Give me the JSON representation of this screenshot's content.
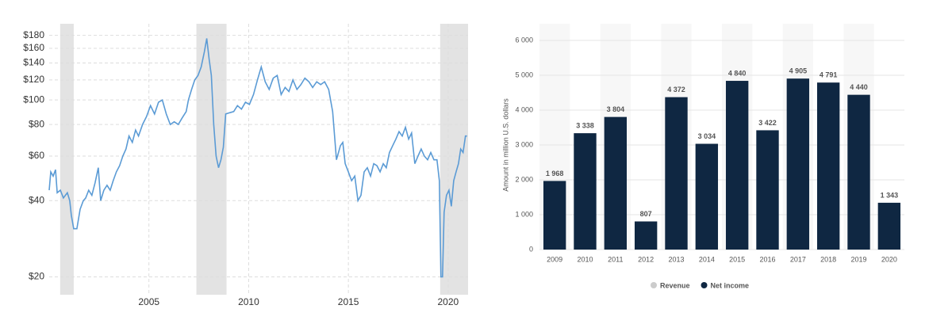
{
  "chart_data": [
    {
      "type": "line",
      "log_scale": true,
      "color": "#5b9bd5",
      "grid": true,
      "shade_color": "#e3e3e3",
      "xlim": [
        2000,
        2021
      ],
      "xticks": [
        2005,
        2010,
        2015,
        2020
      ],
      "ylim": [
        17,
        200
      ],
      "yticks": [
        {
          "value": 20,
          "label": "$20"
        },
        {
          "value": 40,
          "label": "$40"
        },
        {
          "value": 60,
          "label": "$60"
        },
        {
          "value": 80,
          "label": "$80"
        },
        {
          "value": 100,
          "label": "$100"
        },
        {
          "value": 120,
          "label": "$120"
        },
        {
          "value": 140,
          "label": "$140"
        },
        {
          "value": 160,
          "label": "$160"
        },
        {
          "value": 180,
          "label": "$180"
        }
      ],
      "shaded": [
        [
          2000.55,
          2001.23
        ],
        [
          2007.38,
          2008.89
        ],
        [
          2019.6,
          2021
        ]
      ],
      "x": [
        2000.0,
        2000.08,
        2000.2,
        2000.32,
        2000.4,
        2000.56,
        2000.71,
        2000.91,
        2001.03,
        2001.11,
        2001.23,
        2001.39,
        2001.55,
        2001.71,
        2001.83,
        2001.98,
        2002.14,
        2002.3,
        2002.46,
        2002.58,
        2002.74,
        2002.9,
        2003.06,
        2003.21,
        2003.37,
        2003.53,
        2003.69,
        2003.85,
        2004.0,
        2004.17,
        2004.33,
        2004.48,
        2004.68,
        2004.88,
        2005.08,
        2005.28,
        2005.48,
        2005.67,
        2005.87,
        2006.07,
        2006.27,
        2006.47,
        2006.67,
        2006.87,
        2006.98,
        2007.14,
        2007.3,
        2007.46,
        2007.62,
        2007.78,
        2007.9,
        2008.02,
        2008.13,
        2008.25,
        2008.37,
        2008.49,
        2008.61,
        2008.73,
        2008.85,
        2009.05,
        2009.25,
        2009.44,
        2009.64,
        2009.84,
        2010.04,
        2010.24,
        2010.44,
        2010.63,
        2010.83,
        2011.03,
        2011.23,
        2011.43,
        2011.63,
        2011.83,
        2012.02,
        2012.22,
        2012.42,
        2012.62,
        2012.82,
        2013.02,
        2013.21,
        2013.41,
        2013.61,
        2013.81,
        2014.01,
        2014.21,
        2014.4,
        2014.6,
        2014.72,
        2014.84,
        2015.0,
        2015.16,
        2015.32,
        2015.48,
        2015.63,
        2015.79,
        2015.95,
        2016.11,
        2016.27,
        2016.43,
        2016.59,
        2016.75,
        2016.9,
        2017.06,
        2017.22,
        2017.38,
        2017.54,
        2017.7,
        2017.86,
        2018.02,
        2018.17,
        2018.33,
        2018.49,
        2018.65,
        2018.81,
        2018.97,
        2019.13,
        2019.29,
        2019.44,
        2019.56,
        2019.64,
        2019.72,
        2019.8,
        2019.92,
        2020.04,
        2020.16,
        2020.28,
        2020.4,
        2020.52,
        2020.63,
        2020.75,
        2020.87,
        2020.95
      ],
      "values": [
        44,
        52,
        50,
        53,
        43,
        44,
        41,
        43,
        40,
        35,
        31,
        31,
        37,
        40,
        41,
        44,
        42,
        47,
        54,
        40,
        44,
        46,
        44,
        48,
        52,
        55,
        60,
        64,
        72,
        68,
        76,
        72,
        80,
        86,
        95,
        88,
        98,
        100,
        88,
        80,
        82,
        80,
        85,
        90,
        100,
        110,
        120,
        125,
        135,
        155,
        175,
        145,
        125,
        80,
        60,
        54,
        58,
        65,
        88,
        89,
        90,
        95,
        92,
        98,
        96,
        105,
        120,
        135,
        118,
        110,
        122,
        125,
        105,
        112,
        108,
        120,
        110,
        115,
        122,
        118,
        112,
        118,
        115,
        118,
        110,
        90,
        58,
        66,
        68,
        56,
        52,
        48,
        50,
        40,
        42,
        52,
        54,
        50,
        56,
        55,
        52,
        56,
        54,
        62,
        66,
        70,
        75,
        72,
        78,
        70,
        74,
        56,
        60,
        64,
        60,
        58,
        62,
        58,
        58,
        48,
        20,
        20,
        36,
        42,
        44,
        38,
        48,
        52,
        56,
        64,
        62,
        72,
        72
      ]
    },
    {
      "type": "bar",
      "y_label": "Amount in million U.S. dollars",
      "grid": true,
      "categories": [
        "2009",
        "2010",
        "2011",
        "2012",
        "2013",
        "2014",
        "2015",
        "2016",
        "2017",
        "2018",
        "2019",
        "2020"
      ],
      "ylim": [
        0,
        6000
      ],
      "yticks": [
        0,
        {
          "value": 1000,
          "label": "1 000"
        },
        {
          "value": 2000,
          "label": "2 000"
        },
        {
          "value": 3000,
          "label": "3 000"
        },
        {
          "value": 4000,
          "label": "4 000"
        },
        {
          "value": 5000,
          "label": "5 000"
        },
        {
          "value": 6000,
          "label": "6 000"
        }
      ],
      "series": [
        {
          "name": "Revenue",
          "color": "#cccccc",
          "hidden": true
        },
        {
          "name": "Net income",
          "color": "#0f2742",
          "values": [
            1968,
            3338,
            3804,
            807,
            4372,
            3034,
            4840,
            3422,
            4905,
            4791,
            4440,
            1343
          ],
          "value_labels": [
            "1 968",
            "3 338",
            "3 804",
            "807",
            "4 372",
            "3 034",
            "4 840",
            "3 422",
            "4 905",
            "4 791",
            "4 440",
            "1 343"
          ]
        }
      ]
    }
  ]
}
